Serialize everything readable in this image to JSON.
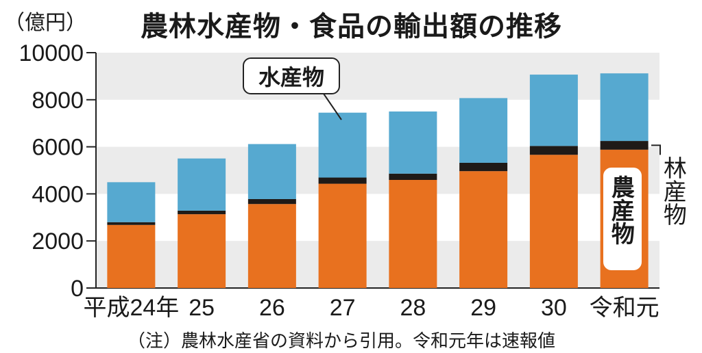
{
  "title": "農林水産物・食品の輸出額の推移",
  "unit_label": "（億円）",
  "note": "（注）農林水産省の資料から引用。令和元年は速報値",
  "chart_data": {
    "type": "bar",
    "stacked": true,
    "title": "農林水産物・食品の輸出額の推移",
    "ylabel": "（億円）",
    "ylim": [
      0,
      10000
    ],
    "yticks": [
      "0",
      "2000",
      "4000",
      "6000",
      "8000",
      "10000"
    ],
    "categories": [
      "平成24年",
      "25",
      "26",
      "27",
      "28",
      "29",
      "30",
      "令和元"
    ],
    "series": [
      {
        "name": "農産物",
        "color": "#e8711f",
        "values": [
          2680,
          3136,
          3569,
          4431,
          4593,
          4966,
          5661,
          5878
        ]
      },
      {
        "name": "林産物",
        "color": "#1f1a17",
        "values": [
          118,
          152,
          211,
          263,
          268,
          355,
          376,
          370
        ]
      },
      {
        "name": "水産物",
        "color": "#56a9d0",
        "values": [
          1698,
          2216,
          2337,
          2757,
          2640,
          2749,
          3031,
          2873
        ]
      }
    ],
    "grid": true,
    "bands": true
  },
  "labels": {
    "fisheries": "水産物",
    "agriculture": "農産物",
    "forestry": "林産物"
  }
}
